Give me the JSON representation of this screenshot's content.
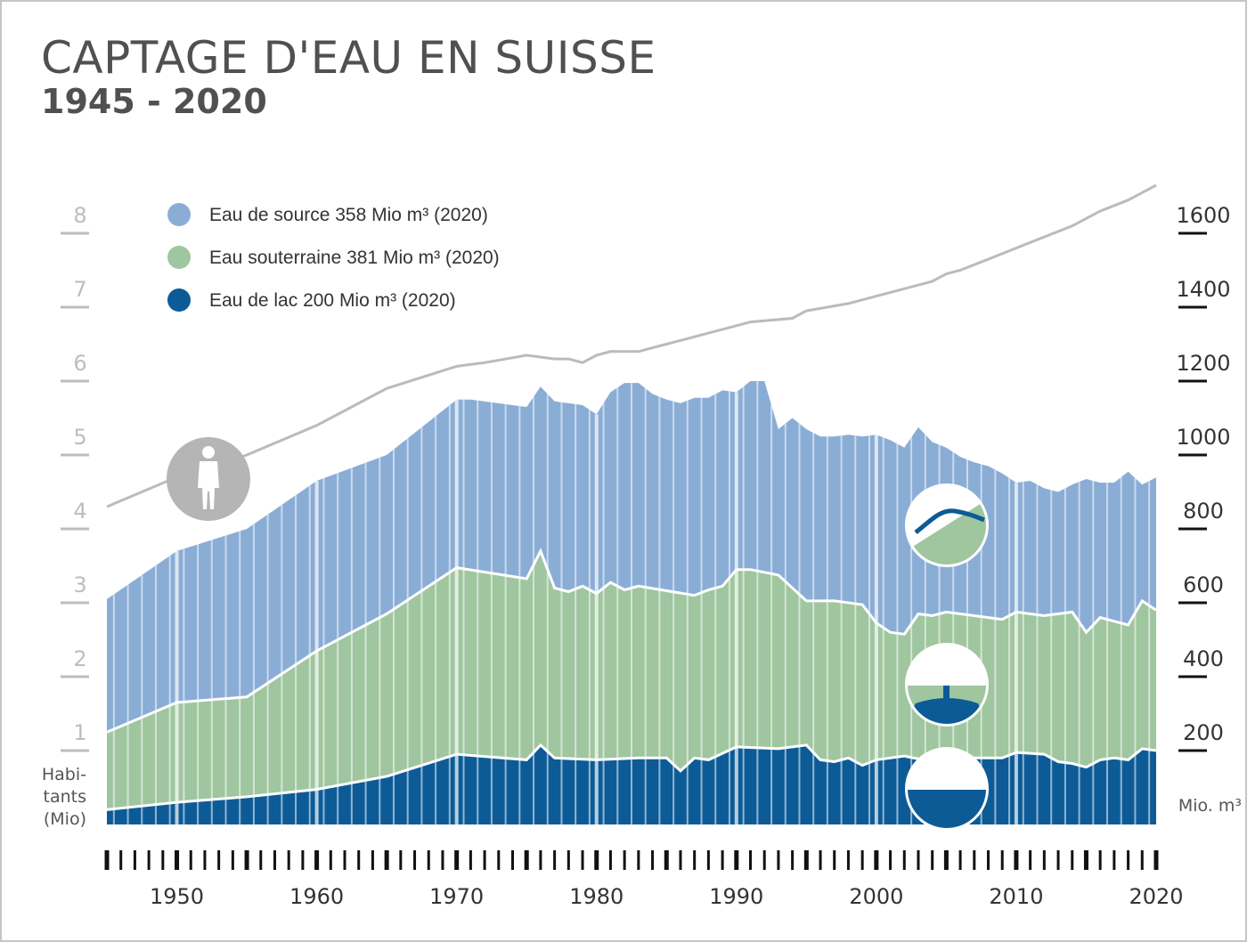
{
  "chart_data": {
    "type": "area",
    "title": "CAPTAGE D'EAU EN SUISSE",
    "subtitle": "1945 - 2020",
    "x_range": [
      1945,
      2020
    ],
    "left_axis": {
      "label_lines": [
        "Habi-",
        "tants",
        "(Mio)"
      ],
      "ticks": [
        "1",
        "2",
        "3",
        "4",
        "5",
        "6",
        "7",
        "8"
      ],
      "range": [
        0,
        8.2
      ]
    },
    "right_axis": {
      "label": "Mio. m³",
      "ticks": [
        "200",
        "400",
        "600",
        "800",
        "1000",
        "1200",
        "1400",
        "1600"
      ],
      "range": [
        0,
        1640
      ]
    },
    "x_ticks": [
      "1950",
      "1960",
      "1970",
      "1980",
      "1990",
      "2000",
      "2010",
      "2020"
    ],
    "legend": [
      {
        "name": "Eau de source",
        "label": "Eau de source 358 Mio m³ (2020)",
        "color": "#8aadd6"
      },
      {
        "name": "Eau souterraine",
        "label": "Eau souterraine 381 Mio m³ (2020)",
        "color": "#9fc69f"
      },
      {
        "name": "Eau de lac",
        "label": "Eau de lac 200 Mio m³ (2020)",
        "color": "#0c5b97"
      }
    ],
    "series": [
      {
        "name": "Eau de lac",
        "color": "#0c5b97",
        "points": [
          [
            1945,
            40
          ],
          [
            1950,
            60
          ],
          [
            1955,
            75
          ],
          [
            1960,
            95
          ],
          [
            1965,
            130
          ],
          [
            1970,
            190
          ],
          [
            1975,
            175
          ],
          [
            1976,
            215
          ],
          [
            1977,
            180
          ],
          [
            1980,
            175
          ],
          [
            1983,
            180
          ],
          [
            1985,
            180
          ],
          [
            1986,
            145
          ],
          [
            1987,
            180
          ],
          [
            1988,
            175
          ],
          [
            1990,
            210
          ],
          [
            1993,
            205
          ],
          [
            1995,
            215
          ],
          [
            1996,
            175
          ],
          [
            1997,
            170
          ],
          [
            1998,
            180
          ],
          [
            1999,
            160
          ],
          [
            2000,
            175
          ],
          [
            2002,
            185
          ],
          [
            2004,
            170
          ],
          [
            2005,
            175
          ],
          [
            2007,
            180
          ],
          [
            2009,
            180
          ],
          [
            2010,
            195
          ],
          [
            2012,
            190
          ],
          [
            2013,
            170
          ],
          [
            2014,
            165
          ],
          [
            2015,
            155
          ],
          [
            2016,
            175
          ],
          [
            2017,
            180
          ],
          [
            2018,
            175
          ],
          [
            2019,
            205
          ],
          [
            2020,
            200
          ]
        ]
      },
      {
        "name": "Eau souterraine",
        "color": "#9fc69f",
        "points": [
          [
            1945,
            250
          ],
          [
            1950,
            330
          ],
          [
            1955,
            345
          ],
          [
            1960,
            470
          ],
          [
            1965,
            570
          ],
          [
            1970,
            695
          ],
          [
            1975,
            665
          ],
          [
            1976,
            740
          ],
          [
            1977,
            640
          ],
          [
            1978,
            630
          ],
          [
            1979,
            645
          ],
          [
            1980,
            625
          ],
          [
            1981,
            655
          ],
          [
            1982,
            635
          ],
          [
            1983,
            645
          ],
          [
            1987,
            620
          ],
          [
            1988,
            635
          ],
          [
            1989,
            645
          ],
          [
            1990,
            690
          ],
          [
            1991,
            690
          ],
          [
            1993,
            675
          ],
          [
            1995,
            605
          ],
          [
            1997,
            605
          ],
          [
            1998,
            600
          ],
          [
            1999,
            595
          ],
          [
            2000,
            545
          ],
          [
            2001,
            520
          ],
          [
            2002,
            515
          ],
          [
            2003,
            570
          ],
          [
            2004,
            565
          ],
          [
            2005,
            575
          ],
          [
            2007,
            565
          ],
          [
            2009,
            555
          ],
          [
            2010,
            575
          ],
          [
            2012,
            565
          ],
          [
            2014,
            575
          ],
          [
            2015,
            520
          ],
          [
            2016,
            560
          ],
          [
            2017,
            550
          ],
          [
            2018,
            540
          ],
          [
            2019,
            605
          ],
          [
            2020,
            580
          ]
        ]
      },
      {
        "name": "Eau de source",
        "color": "#8aadd6",
        "points": [
          [
            1945,
            610
          ],
          [
            1950,
            740
          ],
          [
            1955,
            800
          ],
          [
            1960,
            930
          ],
          [
            1965,
            1000
          ],
          [
            1970,
            1150
          ],
          [
            1971,
            1150
          ],
          [
            1975,
            1130
          ],
          [
            1976,
            1185
          ],
          [
            1977,
            1145
          ],
          [
            1978,
            1140
          ],
          [
            1979,
            1135
          ],
          [
            1980,
            1110
          ],
          [
            1981,
            1170
          ],
          [
            1982,
            1195
          ],
          [
            1983,
            1195
          ],
          [
            1984,
            1165
          ],
          [
            1985,
            1150
          ],
          [
            1986,
            1140
          ],
          [
            1987,
            1155
          ],
          [
            1988,
            1155
          ],
          [
            1989,
            1175
          ],
          [
            1990,
            1170
          ],
          [
            1991,
            1200
          ],
          [
            1992,
            1200
          ],
          [
            1993,
            1070
          ],
          [
            1994,
            1100
          ],
          [
            1995,
            1070
          ],
          [
            1996,
            1050
          ],
          [
            1997,
            1050
          ],
          [
            1998,
            1055
          ],
          [
            1999,
            1050
          ],
          [
            2000,
            1055
          ],
          [
            2001,
            1040
          ],
          [
            2002,
            1020
          ],
          [
            2003,
            1075
          ],
          [
            2004,
            1035
          ],
          [
            2005,
            1020
          ],
          [
            2006,
            995
          ],
          [
            2007,
            980
          ],
          [
            2008,
            970
          ],
          [
            2009,
            950
          ],
          [
            2010,
            925
          ],
          [
            2011,
            930
          ],
          [
            2012,
            910
          ],
          [
            2013,
            900
          ],
          [
            2014,
            920
          ],
          [
            2015,
            935
          ],
          [
            2016,
            925
          ],
          [
            2017,
            925
          ],
          [
            2018,
            955
          ],
          [
            2019,
            920
          ],
          [
            2020,
            939
          ]
        ]
      },
      {
        "name": "Habitants",
        "color": "#bbbbbb",
        "axis": "left",
        "points": [
          [
            1945,
            4.3
          ],
          [
            1950,
            4.7
          ],
          [
            1955,
            5.0
          ],
          [
            1960,
            5.4
          ],
          [
            1965,
            5.9
          ],
          [
            1970,
            6.2
          ],
          [
            1972,
            6.25
          ],
          [
            1975,
            6.35
          ],
          [
            1977,
            6.3
          ],
          [
            1978,
            6.3
          ],
          [
            1979,
            6.25
          ],
          [
            1980,
            6.35
          ],
          [
            1981,
            6.4
          ],
          [
            1983,
            6.4
          ],
          [
            1984,
            6.45
          ],
          [
            1985,
            6.5
          ],
          [
            1988,
            6.65
          ],
          [
            1990,
            6.75
          ],
          [
            1991,
            6.8
          ],
          [
            1994,
            6.85
          ],
          [
            1995,
            6.95
          ],
          [
            1998,
            7.05
          ],
          [
            2000,
            7.15
          ],
          [
            2002,
            7.25
          ],
          [
            2004,
            7.35
          ],
          [
            2005,
            7.45
          ],
          [
            2006,
            7.5
          ],
          [
            2008,
            7.65
          ],
          [
            2010,
            7.8
          ],
          [
            2012,
            7.95
          ],
          [
            2014,
            8.1
          ],
          [
            2016,
            8.3
          ],
          [
            2018,
            8.45
          ],
          [
            2020,
            8.65
          ]
        ]
      }
    ],
    "annotations": [
      "person-icon",
      "spring-icon",
      "groundwater-icon",
      "lake-icon"
    ]
  }
}
